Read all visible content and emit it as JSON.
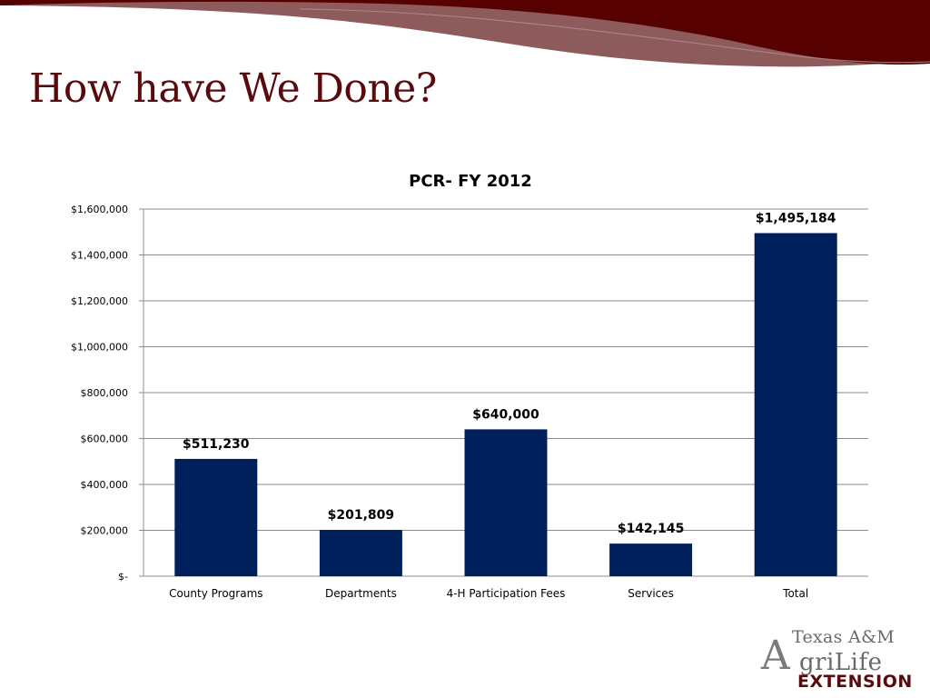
{
  "slide": {
    "title": "How have We Done?"
  },
  "logo": {
    "line1": "Texas A&M",
    "initial": "A",
    "line2": "griLife",
    "line3": "EXTENSION"
  },
  "colors": {
    "bar": "#00205b",
    "title": "#5a0a0c",
    "banner_dark": "#560000",
    "banner_mid": "#8e5b5c",
    "grid": "#8c8c8c"
  },
  "chart_data": {
    "type": "bar",
    "title": "PCR- FY 2012",
    "categories": [
      "County Programs",
      "Departments",
      "4-H Participation Fees",
      "Services",
      "Total"
    ],
    "values": [
      511230,
      201809,
      640000,
      142145,
      1495184
    ],
    "data_labels": [
      "$511,230",
      "$201,809",
      "$640,000",
      "$142,145",
      "$1,495,184"
    ],
    "y_ticks": [
      0,
      200000,
      400000,
      600000,
      800000,
      1000000,
      1200000,
      1400000,
      1600000
    ],
    "y_tick_labels": [
      "$-",
      "$200,000",
      "$400,000",
      "$600,000",
      "$800,000",
      "$1,000,000",
      "$1,200,000",
      "$1,400,000",
      "$1,600,000"
    ],
    "ylim": [
      0,
      1600000
    ],
    "xlabel": "",
    "ylabel": "",
    "grid": true,
    "legend": "none"
  }
}
